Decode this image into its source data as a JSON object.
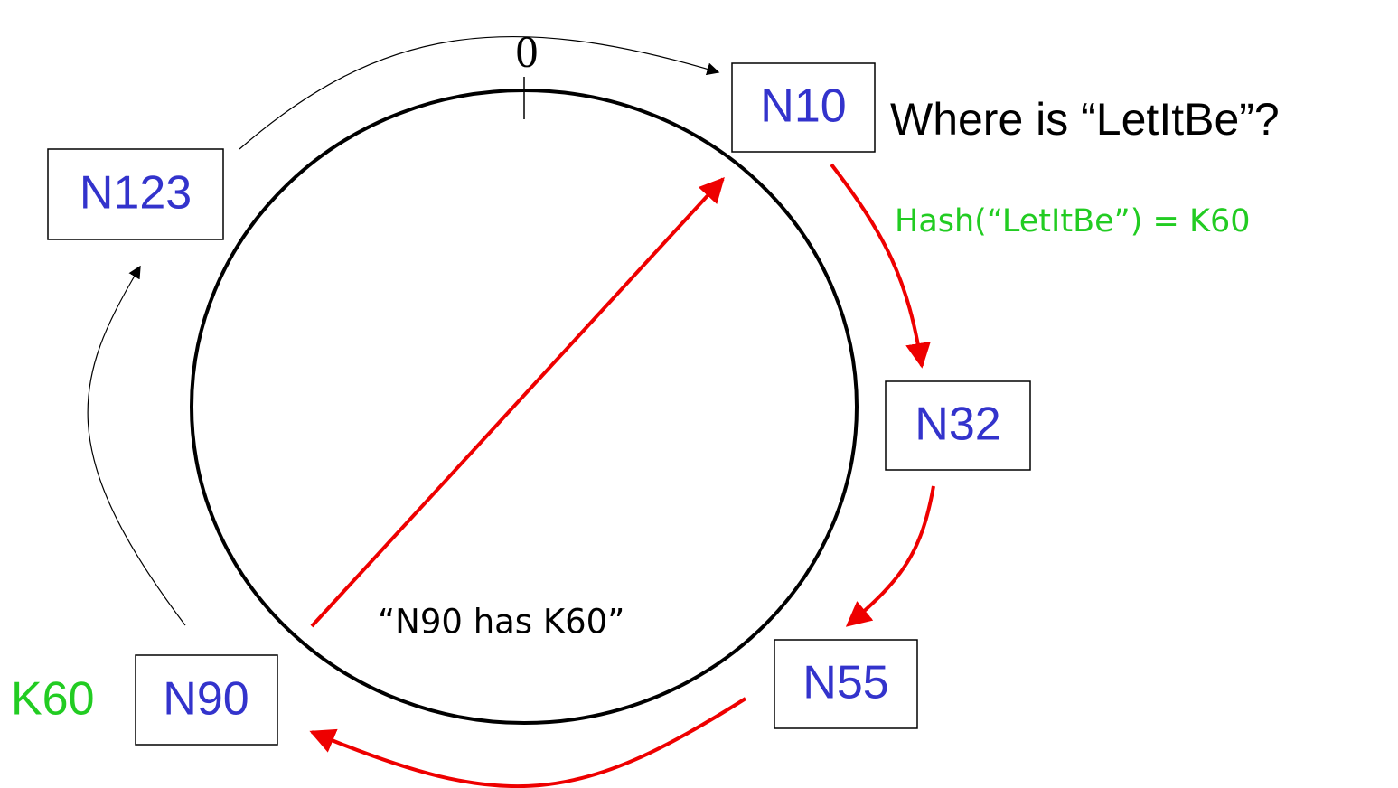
{
  "zero_label": "0",
  "nodes": [
    {
      "label": "N10"
    },
    {
      "label": "N32"
    },
    {
      "label": "N55"
    },
    {
      "label": "N90"
    },
    {
      "label": "N123"
    }
  ],
  "question": "Where is “LetItBe”?",
  "hash": "Hash(“LetItBe”) = K60",
  "key_label": "K60",
  "reply": "“N90 has K60”"
}
